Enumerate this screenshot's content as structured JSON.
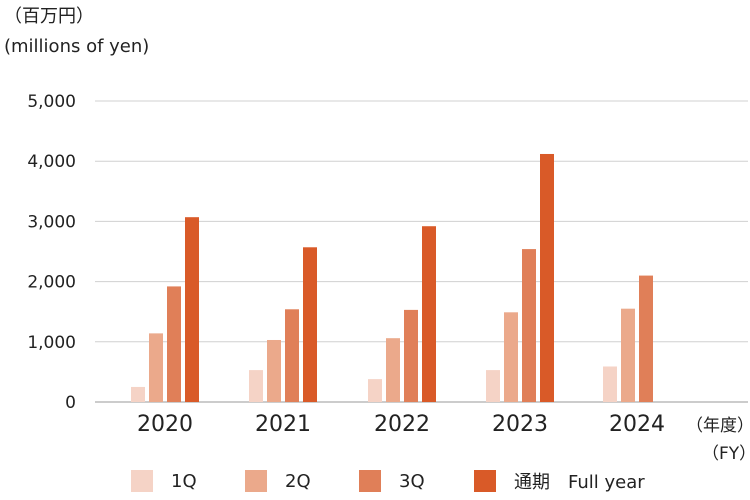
{
  "chart_data": {
    "type": "bar",
    "unit_label_jp": "（百万円）",
    "unit_label_en": "(millions of yen)",
    "categories": [
      "2020",
      "2021",
      "2022",
      "2023",
      "2024"
    ],
    "x_unit_jp": "（年度）",
    "x_unit_en": "（FY）",
    "ylim": [
      0,
      5000
    ],
    "yticks": [
      "0",
      "1,000",
      "2,000",
      "3,000",
      "4,000",
      "5,000"
    ],
    "ytick_values": [
      0,
      1000,
      2000,
      3000,
      4000,
      5000
    ],
    "grid": true,
    "legend_position": "bottom",
    "series": [
      {
        "name": "1Q",
        "color": "#f5d3c6",
        "values": [
          250,
          530,
          380,
          530,
          590
        ]
      },
      {
        "name": "2Q",
        "color": "#eba98b",
        "values": [
          1140,
          1030,
          1060,
          1490,
          1550
        ]
      },
      {
        "name": "3Q",
        "color": "#e07f58",
        "values": [
          1920,
          1540,
          1530,
          2540,
          2100
        ]
      },
      {
        "name": "通期　Full year",
        "color": "#d95a28",
        "values": [
          3070,
          2570,
          2920,
          4120,
          null
        ]
      }
    ]
  }
}
